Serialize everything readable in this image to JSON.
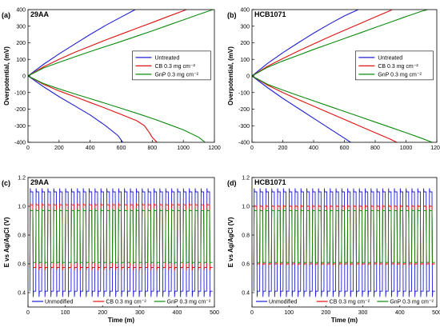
{
  "colors": {
    "Untreated": "#1f1fd6",
    "CB": "#e01010",
    "GnP": "#0c8a0c",
    "Unmodified": "#1f1fd6"
  },
  "chart_data": [
    {
      "id": "a",
      "type": "line",
      "panel_label": "(a)",
      "title": "29AA",
      "xlabel": "",
      "ylabel": "Overpotential, (mV)",
      "xlim": [
        0,
        1200
      ],
      "ylim": [
        -400,
        400
      ],
      "xticks": [
        0,
        200,
        400,
        600,
        800,
        1000,
        1200
      ],
      "yticks": [
        -400,
        -300,
        -200,
        -100,
        0,
        100,
        200,
        300,
        400
      ],
      "legend_position": "center-right",
      "series": [
        {
          "name": "Untreated",
          "color": "#1f1fd6",
          "style": "polarization",
          "up": [
            [
              0,
              0
            ],
            [
              100,
              70
            ],
            [
              200,
              133
            ],
            [
              300,
              192
            ],
            [
              400,
              250
            ],
            [
              500,
              305
            ],
            [
              600,
              355
            ],
            [
              690,
              400
            ]
          ],
          "down": [
            [
              0,
              0
            ],
            [
              100,
              -65
            ],
            [
              200,
              -125
            ],
            [
              300,
              -180
            ],
            [
              400,
              -235
            ],
            [
              500,
              -300
            ],
            [
              580,
              -360
            ],
            [
              610,
              -400
            ]
          ]
        },
        {
          "name": "CB 0.3 mg cm⁻²",
          "color": "#e01010",
          "style": "polarization",
          "up": [
            [
              0,
              0
            ],
            [
              100,
              55
            ],
            [
              200,
              100
            ],
            [
              300,
              142
            ],
            [
              400,
              180
            ],
            [
              500,
              217
            ],
            [
              600,
              252
            ],
            [
              700,
              287
            ],
            [
              800,
              322
            ],
            [
              900,
              358
            ],
            [
              1000,
              393
            ],
            [
              1020,
              400
            ]
          ],
          "down": [
            [
              0,
              0
            ],
            [
              100,
              -50
            ],
            [
              200,
              -90
            ],
            [
              300,
              -125
            ],
            [
              400,
              -160
            ],
            [
              500,
              -195
            ],
            [
              600,
              -232
            ],
            [
              700,
              -270
            ],
            [
              750,
              -300
            ],
            [
              780,
              -340
            ],
            [
              800,
              -370
            ],
            [
              830,
              -400
            ]
          ]
        },
        {
          "name": "GnP 0.3 mg cm⁻²",
          "color": "#0c8a0c",
          "style": "polarization",
          "up": [
            [
              0,
              0
            ],
            [
              100,
              48
            ],
            [
              200,
              82
            ],
            [
              300,
              115
            ],
            [
              400,
              147
            ],
            [
              500,
              178
            ],
            [
              600,
              208
            ],
            [
              700,
              240
            ],
            [
              800,
              272
            ],
            [
              900,
              305
            ],
            [
              1000,
              338
            ],
            [
              1100,
              371
            ],
            [
              1190,
              400
            ]
          ],
          "down": [
            [
              0,
              0
            ],
            [
              100,
              -46
            ],
            [
              200,
              -78
            ],
            [
              300,
              -108
            ],
            [
              400,
              -137
            ],
            [
              500,
              -166
            ],
            [
              600,
              -195
            ],
            [
              700,
              -225
            ],
            [
              800,
              -256
            ],
            [
              900,
              -290
            ],
            [
              1000,
              -325
            ],
            [
              1100,
              -370
            ],
            [
              1140,
              -400
            ]
          ]
        }
      ]
    },
    {
      "id": "b",
      "type": "line",
      "panel_label": "(b)",
      "title": "HCB1071",
      "xlabel": "",
      "ylabel": "Overpotential, (mV)",
      "xlim": [
        0,
        1200
      ],
      "ylim": [
        -400,
        400
      ],
      "xticks": [
        0,
        200,
        400,
        600,
        800,
        1000,
        1200
      ],
      "yticks": [
        -400,
        -300,
        -200,
        -100,
        0,
        100,
        200,
        300,
        400
      ],
      "legend_position": "center-right",
      "series": [
        {
          "name": "Untreated",
          "color": "#1f1fd6",
          "style": "polarization",
          "up": [
            [
              0,
              0
            ],
            [
              100,
              75
            ],
            [
              200,
              140
            ],
            [
              300,
              200
            ],
            [
              400,
              258
            ],
            [
              500,
              312
            ],
            [
              600,
              362
            ],
            [
              690,
              400
            ]
          ],
          "down": [
            [
              0,
              0
            ],
            [
              100,
              -70
            ],
            [
              200,
              -135
            ],
            [
              300,
              -195
            ],
            [
              400,
              -255
            ],
            [
              500,
              -315
            ],
            [
              600,
              -375
            ],
            [
              640,
              -400
            ]
          ]
        },
        {
          "name": "CB 0.3 mg cm⁻²",
          "color": "#e01010",
          "style": "polarization",
          "up": [
            [
              0,
              0
            ],
            [
              100,
              58
            ],
            [
              200,
              105
            ],
            [
              300,
              150
            ],
            [
              400,
              193
            ],
            [
              500,
              235
            ],
            [
              600,
              275
            ],
            [
              700,
              315
            ],
            [
              800,
              355
            ],
            [
              900,
              395
            ],
            [
              910,
              400
            ]
          ],
          "down": [
            [
              0,
              0
            ],
            [
              100,
              -55
            ],
            [
              200,
              -100
            ],
            [
              300,
              -142
            ],
            [
              400,
              -182
            ],
            [
              500,
              -222
            ],
            [
              600,
              -262
            ],
            [
              700,
              -302
            ],
            [
              800,
              -342
            ],
            [
              900,
              -382
            ],
            [
              940,
              -400
            ]
          ]
        },
        {
          "name": "GnP 0.3 mg cm⁻²",
          "color": "#0c8a0c",
          "style": "polarization",
          "up": [
            [
              0,
              0
            ],
            [
              100,
              52
            ],
            [
              200,
              90
            ],
            [
              300,
              125
            ],
            [
              400,
              160
            ],
            [
              500,
              193
            ],
            [
              600,
              226
            ],
            [
              700,
              259
            ],
            [
              800,
              292
            ],
            [
              900,
              325
            ],
            [
              1000,
              358
            ],
            [
              1100,
              390
            ],
            [
              1140,
              400
            ]
          ],
          "down": [
            [
              0,
              0
            ],
            [
              100,
              -50
            ],
            [
              200,
              -85
            ],
            [
              300,
              -118
            ],
            [
              400,
              -150
            ],
            [
              500,
              -182
            ],
            [
              600,
              -214
            ],
            [
              700,
              -246
            ],
            [
              800,
              -278
            ],
            [
              900,
              -310
            ],
            [
              1000,
              -342
            ],
            [
              1100,
              -375
            ],
            [
              1170,
              -400
            ]
          ]
        }
      ]
    },
    {
      "id": "c",
      "type": "line",
      "panel_label": "(c)",
      "title": "29AA",
      "xlabel": "Time (m)",
      "ylabel": "E vs Ag/AgCl (V)",
      "xlim": [
        0,
        500
      ],
      "ylim": [
        0.3,
        1.2
      ],
      "xticks": [
        0,
        100,
        200,
        300,
        400,
        500
      ],
      "yticks": [
        0.4,
        0.6,
        0.8,
        1.0,
        1.2
      ],
      "legend_position": "bottom",
      "cycles": 31,
      "x_start": 5,
      "x_end": 495,
      "series": [
        {
          "name": "Unmodified",
          "color": "#1f1fd6",
          "style": "square",
          "high": 1.1,
          "low": 0.41,
          "spike_high": 1.125,
          "spike_low": 0.37
        },
        {
          "name": "CB 0.3 mg cm⁻²",
          "color": "#e01010",
          "style": "square",
          "high": 1.01,
          "low": 0.575,
          "spike_high": 1.02,
          "spike_low": 0.555
        },
        {
          "name": "GnP 0.3 mg cm⁻²",
          "color": "#0c8a0c",
          "style": "square",
          "high": 0.97,
          "low": 0.61,
          "spike_high": 0.985,
          "spike_low": 0.6
        }
      ]
    },
    {
      "id": "d",
      "type": "line",
      "panel_label": "(d)",
      "title": "HCB1071",
      "xlabel": "Time (m)",
      "ylabel": "E vs Ag/AgCl (V)",
      "xlim": [
        0,
        500
      ],
      "ylim": [
        0.3,
        1.2
      ],
      "xticks": [
        0,
        100,
        200,
        300,
        400,
        500
      ],
      "yticks": [
        0.4,
        0.6,
        0.8,
        1.0,
        1.2
      ],
      "legend_position": "bottom",
      "cycles": 31,
      "x_start": 5,
      "x_end": 495,
      "series": [
        {
          "name": "Unmodified",
          "color": "#1f1fd6",
          "style": "square",
          "high": 1.1,
          "low": 0.41,
          "spike_high": 1.125,
          "spike_low": 0.37
        },
        {
          "name": "CB 0.3 mg cm⁻²",
          "color": "#e01010",
          "style": "square",
          "high": 1.0,
          "low": 0.6,
          "spike_high": 1.01,
          "spike_low": 0.59
        },
        {
          "name": "GnP 0.3 mg cm⁻²",
          "color": "#0c8a0c",
          "style": "square",
          "high": 0.97,
          "low": 0.61,
          "spike_high": 0.98,
          "spike_low": 0.605
        }
      ]
    }
  ]
}
